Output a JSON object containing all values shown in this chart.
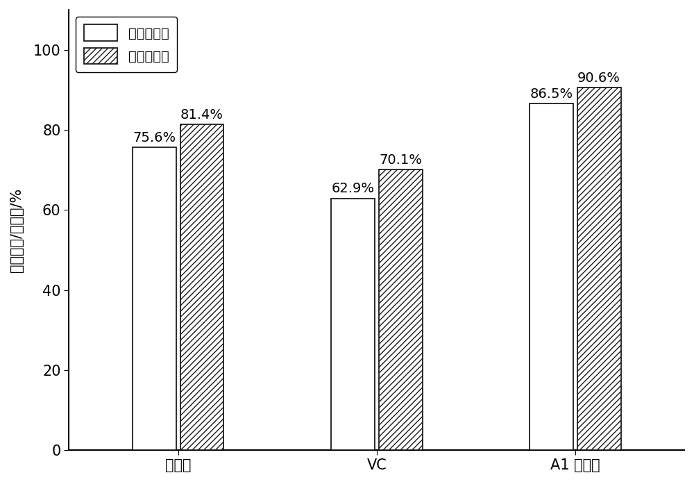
{
  "categories": [
    "空白组",
    "VC",
    "A1 添加剂"
  ],
  "series1_label": "容量剩余率",
  "series2_label": "容量恢复率",
  "series1_values": [
    75.6,
    62.9,
    86.5
  ],
  "series2_values": [
    81.4,
    70.1,
    90.6
  ],
  "series1_labels": [
    "75.6%",
    "62.9%",
    "86.5%"
  ],
  "series2_labels": [
    "81.4%",
    "70.1%",
    "90.6%"
  ],
  "ylabel": "容量剩余/恢复率/%",
  "ylim": [
    0,
    110
  ],
  "yticks": [
    0,
    20,
    40,
    60,
    80,
    100
  ],
  "bar_width": 0.22,
  "bar_gap": 0.02,
  "face_color": "#ffffff",
  "bar1_facecolor": "#ffffff",
  "bar1_edgecolor": "#1a1a1a",
  "bar2_facecolor": "#ffffff",
  "bar2_edgecolor": "#1a1a1a",
  "hatch_pattern": "////",
  "tick_fontsize": 15,
  "legend_fontsize": 14,
  "ylabel_fontsize": 15,
  "annotation_fontsize": 14
}
